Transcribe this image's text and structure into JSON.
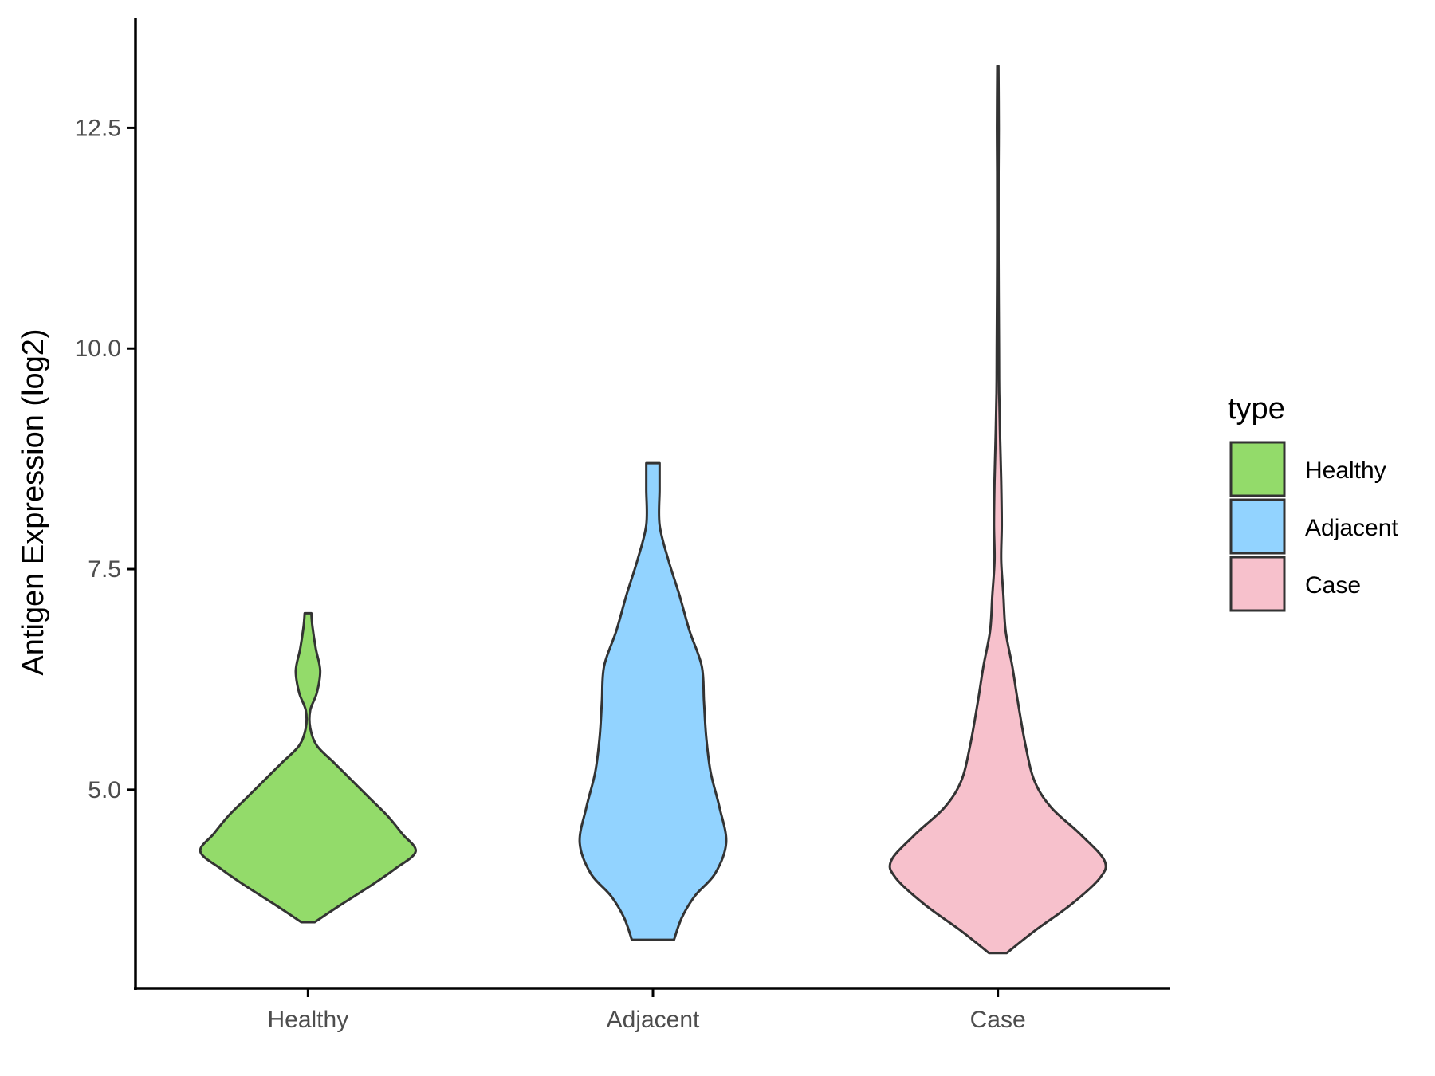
{
  "chart_data": {
    "type": "violin",
    "title": "",
    "xlabel": "",
    "ylabel": "Antigen Expression (log2)",
    "ylim": [
      2.75,
      13.75
    ],
    "yticks": [
      5.0,
      7.5,
      10.0,
      12.5
    ],
    "ytick_labels": [
      "5.0",
      "7.5",
      "10.0",
      "12.5"
    ],
    "categories": [
      "Healthy",
      "Adjacent",
      "Case"
    ],
    "grid": false,
    "legend": {
      "title": "type",
      "placement": "right",
      "entries": [
        "Healthy",
        "Adjacent",
        "Case"
      ]
    },
    "colors": {
      "Healthy": "#93DB6A",
      "Adjacent": "#92D3FF",
      "Case": "#F7C1CC",
      "outline": "#333333"
    },
    "series": [
      {
        "category": "Healthy",
        "min": 3.5,
        "max": 7.0,
        "density": [
          [
            3.5,
            0.06
          ],
          [
            3.7,
            0.3
          ],
          [
            3.9,
            0.55
          ],
          [
            4.1,
            0.78
          ],
          [
            4.3,
            0.97
          ],
          [
            4.5,
            0.85
          ],
          [
            4.7,
            0.72
          ],
          [
            4.9,
            0.56
          ],
          [
            5.1,
            0.4
          ],
          [
            5.3,
            0.24
          ],
          [
            5.5,
            0.08
          ],
          [
            5.7,
            0.02
          ],
          [
            5.9,
            0.02
          ],
          [
            6.1,
            0.08
          ],
          [
            6.35,
            0.11
          ],
          [
            6.6,
            0.07
          ],
          [
            6.85,
            0.04
          ],
          [
            7.0,
            0.03
          ]
        ]
      },
      {
        "category": "Adjacent",
        "min": 3.3,
        "max": 8.7,
        "density": [
          [
            3.3,
            0.19
          ],
          [
            3.55,
            0.26
          ],
          [
            3.8,
            0.38
          ],
          [
            4.05,
            0.56
          ],
          [
            4.4,
            0.66
          ],
          [
            4.8,
            0.6
          ],
          [
            5.2,
            0.52
          ],
          [
            5.6,
            0.48
          ],
          [
            6.0,
            0.46
          ],
          [
            6.4,
            0.44
          ],
          [
            6.8,
            0.33
          ],
          [
            7.2,
            0.24
          ],
          [
            7.6,
            0.14
          ],
          [
            8.0,
            0.06
          ],
          [
            8.4,
            0.06
          ],
          [
            8.7,
            0.06
          ]
        ]
      },
      {
        "category": "Case",
        "min": 3.15,
        "max": 13.2,
        "density": [
          [
            3.15,
            0.08
          ],
          [
            3.4,
            0.33
          ],
          [
            3.7,
            0.66
          ],
          [
            4.0,
            0.92
          ],
          [
            4.2,
            0.96
          ],
          [
            4.5,
            0.74
          ],
          [
            4.8,
            0.48
          ],
          [
            5.1,
            0.33
          ],
          [
            5.5,
            0.25
          ],
          [
            6.0,
            0.18
          ],
          [
            6.4,
            0.13
          ],
          [
            6.8,
            0.07
          ],
          [
            7.2,
            0.05
          ],
          [
            7.6,
            0.03
          ],
          [
            8.0,
            0.035
          ],
          [
            8.5,
            0.03
          ],
          [
            9.0,
            0.02
          ],
          [
            9.5,
            0.012
          ],
          [
            10.0,
            0.01
          ],
          [
            11.0,
            0.006
          ],
          [
            12.0,
            0.006
          ],
          [
            12.5,
            0.008
          ],
          [
            13.2,
            0.005
          ]
        ]
      }
    ]
  }
}
